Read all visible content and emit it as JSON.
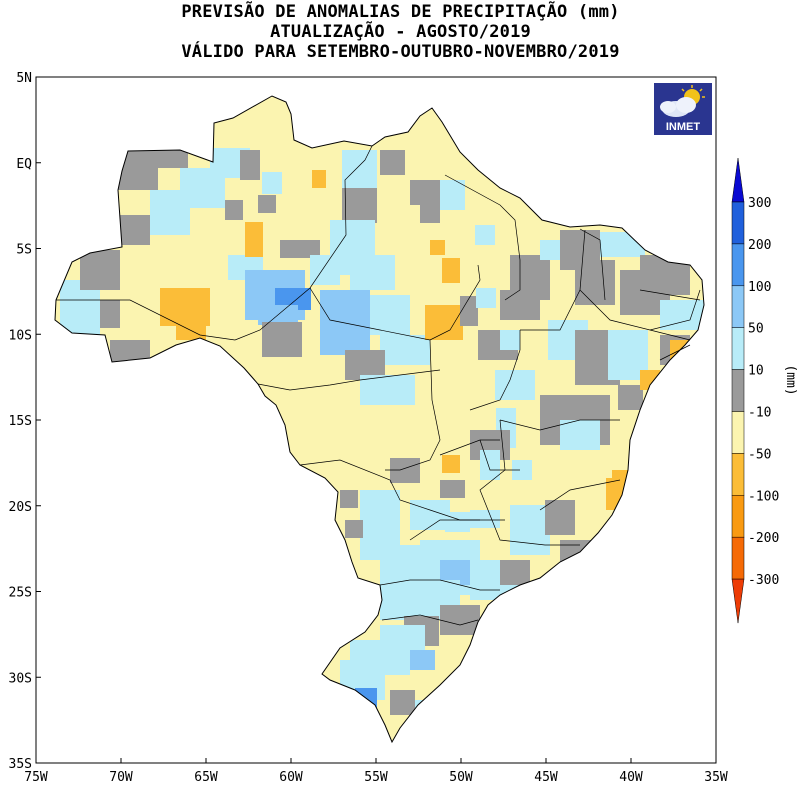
{
  "title": {
    "line1": "PREVISÃO DE ANOMALIAS DE PRECIPITAÇÃO (mm)",
    "line2": "ATUALIZAÇÃO - AGOSTO/2019",
    "line3": "VÁLIDO PARA SETEMBRO-OUTUBRO-NOVEMBRO/2019"
  },
  "logo": {
    "text": "INMET",
    "icon": "cloud-sun-icon"
  },
  "map": {
    "lon_range": [
      -75,
      -35
    ],
    "lat_range": [
      -35,
      5
    ],
    "x_ticks": [
      "75W",
      "70W",
      "65W",
      "60W",
      "55W",
      "50W",
      "45W",
      "40W",
      "35W"
    ],
    "y_ticks": [
      "5N",
      "EQ",
      "5S",
      "10S",
      "15S",
      "20S",
      "25S",
      "30S",
      "35S"
    ]
  },
  "colorbar": {
    "unit_label": "(mm)",
    "tick_labels": [
      "300",
      "200",
      "100",
      "50",
      "10",
      "-10",
      "-50",
      "-100",
      "-200",
      "-300"
    ],
    "colors": [
      "#0a0ad2",
      "#2060dc",
      "#4a96ee",
      "#8cc8f6",
      "#b8ecf8",
      "#9a9a9a",
      "#fbf4b0",
      "#fbbd38",
      "#f99a12",
      "#f56a06",
      "#ed3c06"
    ]
  },
  "legend_categories": [
    "grey",
    "light-yellow",
    "light-cyan",
    "light-blue",
    "orange",
    "blue"
  ]
}
